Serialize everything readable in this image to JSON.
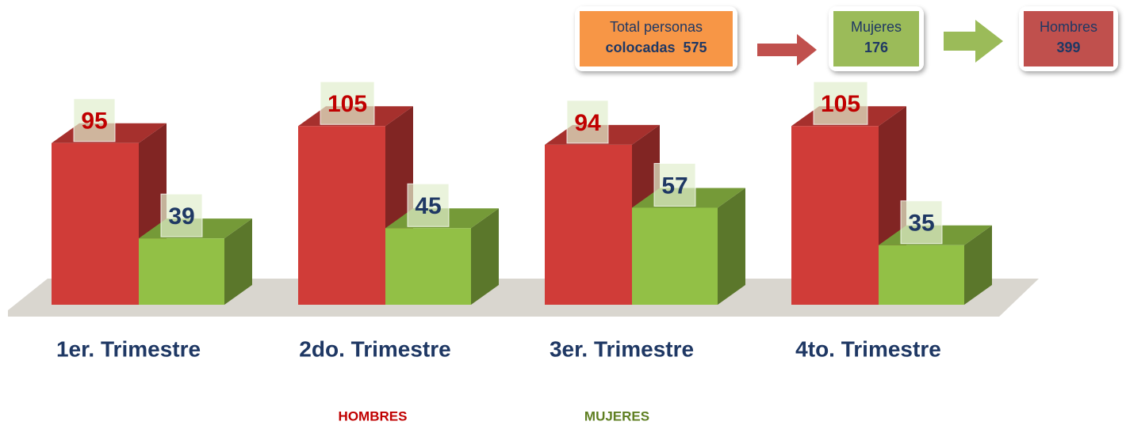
{
  "chart_data": {
    "type": "bar3d",
    "categories": [
      "1er. Trimestre",
      "2do. Trimestre",
      "3er. Trimestre",
      "4to. Trimestre"
    ],
    "series": [
      {
        "name": "HOMBRES",
        "color": "#d03c38",
        "label_color": "#c00000",
        "values": [
          95,
          105,
          94,
          105
        ]
      },
      {
        "name": "MUJERES",
        "color": "#92c046",
        "label_color": "#1f3864",
        "values": [
          39,
          45,
          57,
          35
        ]
      }
    ],
    "legend_colors": [
      "#c00000",
      "#5f7f22"
    ],
    "annotations": [
      {
        "label": "Total personas",
        "value_prefix": "colocadas",
        "value": 575,
        "color": "#f79646"
      },
      {
        "label": "Mujeres",
        "value": 176,
        "color": "#9bbb59"
      },
      {
        "label": "Hombres",
        "value": 399,
        "color": "#c0504d"
      }
    ]
  }
}
